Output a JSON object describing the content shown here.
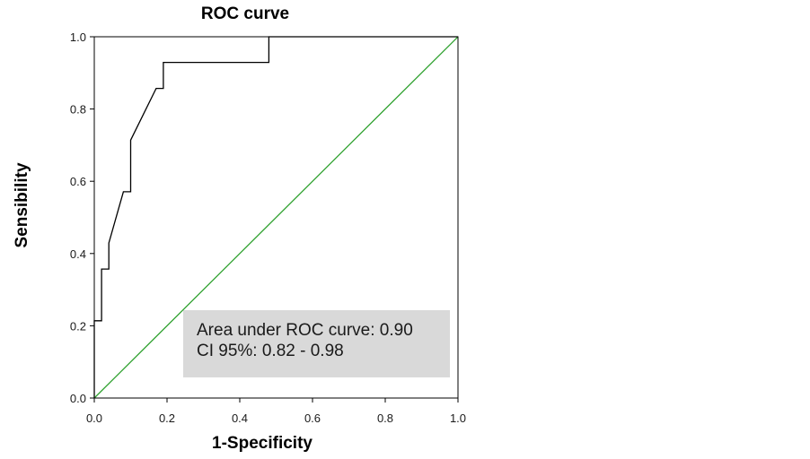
{
  "chart_data": {
    "type": "line",
    "title": "ROC curve",
    "xlabel": "1-Specificity",
    "ylabel": "Sensibility",
    "xlim": [
      0,
      1
    ],
    "ylim": [
      0,
      1
    ],
    "xticks": [
      "0.0",
      "0.2",
      "0.4",
      "0.6",
      "0.8",
      "1.0"
    ],
    "yticks": [
      "0.0",
      "0.2",
      "0.4",
      "0.6",
      "0.8",
      "1.0"
    ],
    "grid": false,
    "series": [
      {
        "color": "#000000",
        "x": [
          0,
          0,
          0.02,
          0.02,
          0.04,
          0.04,
          0.08,
          0.08,
          0.1,
          0.1,
          0.17,
          0.19,
          0.19,
          0.48,
          0.48,
          1.0
        ],
        "y": [
          0,
          0.214,
          0.214,
          0.357,
          0.357,
          0.429,
          0.571,
          0.571,
          0.571,
          0.714,
          0.857,
          0.857,
          0.929,
          0.929,
          1.0,
          1.0
        ]
      },
      {
        "color": "#2ca02c",
        "x": [
          0,
          1
        ],
        "y": [
          0,
          1
        ]
      }
    ],
    "annotations": [
      "Area under ROC curve: 0.90",
      "CI 95%: 0.82 - 0.98"
    ],
    "annotation_box_color": "#d9d9d9"
  }
}
